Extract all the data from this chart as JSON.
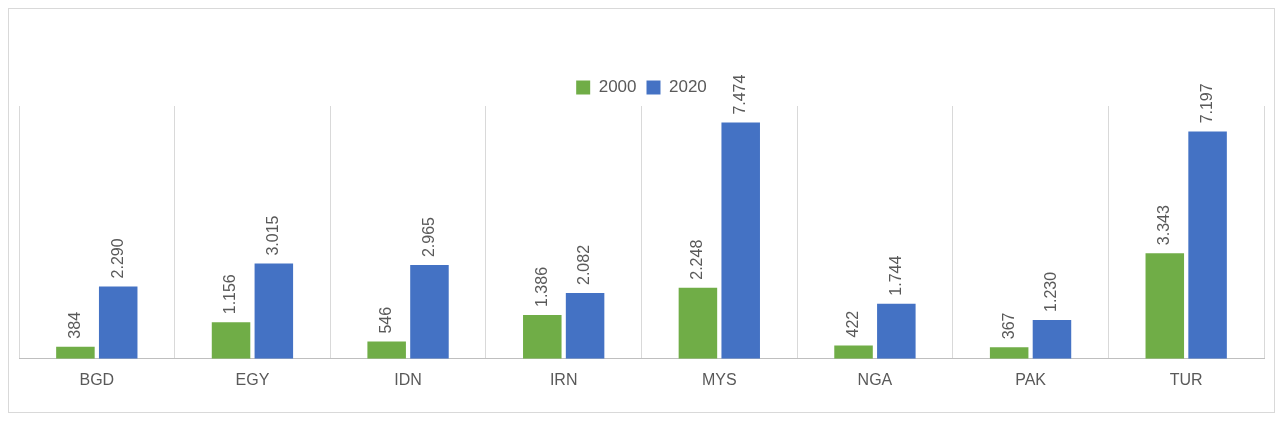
{
  "chart_data": {
    "type": "bar",
    "categories": [
      "BGD",
      "EGY",
      "IDN",
      "IRN",
      "MYS",
      "NGA",
      "PAK",
      "TUR"
    ],
    "series": [
      {
        "name": "2000",
        "color": "#70ad47",
        "values": [
          384,
          1156,
          546,
          1386,
          2248,
          422,
          367,
          3343
        ],
        "value_labels": [
          "384",
          "1.156",
          "546",
          "1.386",
          "2.248",
          "422",
          "367",
          "3.343"
        ]
      },
      {
        "name": "2020",
        "color": "#4472c4",
        "values": [
          2290,
          3015,
          2965,
          2082,
          7474,
          1744,
          1230,
          7197
        ],
        "value_labels": [
          "2.290",
          "3.015",
          "2.965",
          "2.082",
          "7.474",
          "1.744",
          "1.230",
          "7.197"
        ]
      }
    ],
    "grid": "x",
    "legend": "top"
  }
}
